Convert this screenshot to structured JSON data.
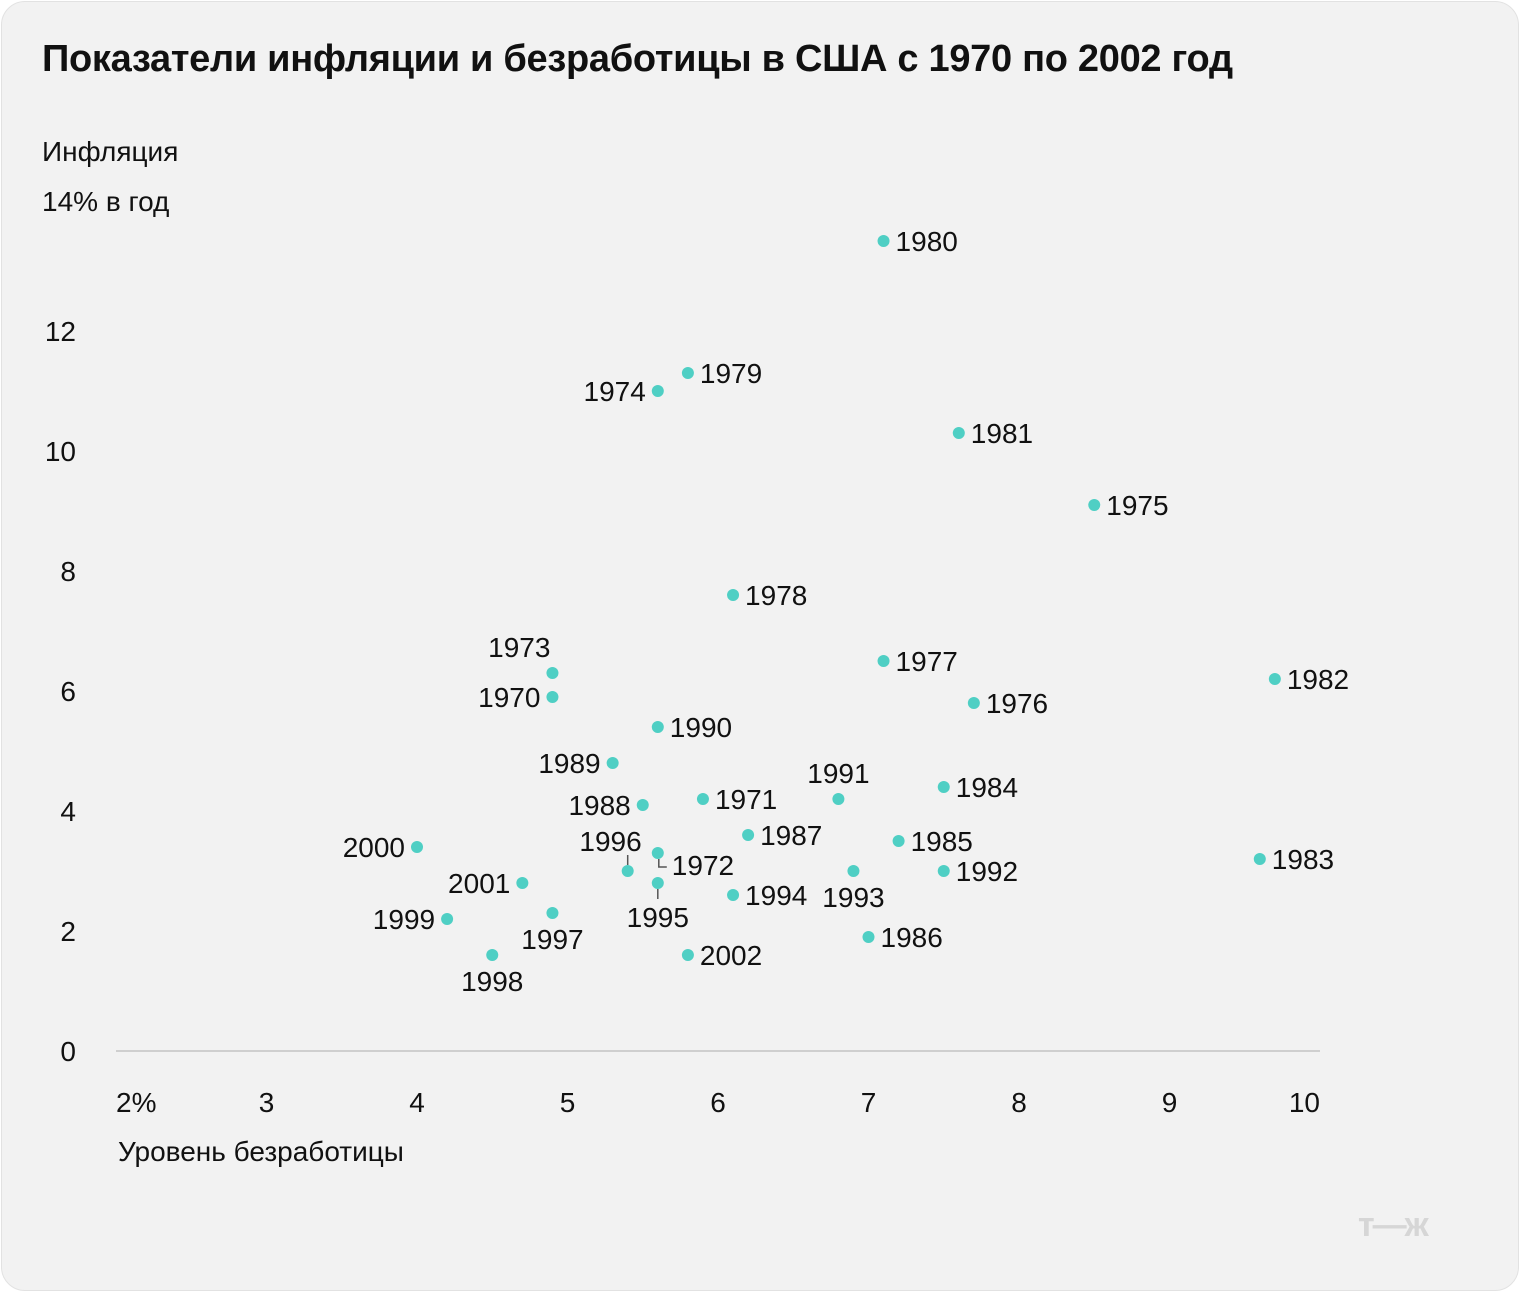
{
  "chart_data": {
    "type": "scatter",
    "title": "Показатели инфляции и безработицы в США с 1970 по 2002 год",
    "ylabel_line1": "Инфляция",
    "ylabel_line2": "14% в год",
    "xlabel": "Уровень безработицы",
    "xlim": [
      2,
      10
    ],
    "ylim": [
      0,
      14
    ],
    "x_ticks": [
      {
        "value": 2,
        "label": "2%"
      },
      {
        "value": 3,
        "label": "3"
      },
      {
        "value": 4,
        "label": "4"
      },
      {
        "value": 5,
        "label": "5"
      },
      {
        "value": 6,
        "label": "6"
      },
      {
        "value": 7,
        "label": "7"
      },
      {
        "value": 8,
        "label": "8"
      },
      {
        "value": 9,
        "label": "9"
      },
      {
        "value": 10,
        "label": "10"
      }
    ],
    "y_ticks": [
      {
        "value": 0,
        "label": "0"
      },
      {
        "value": 2,
        "label": "2"
      },
      {
        "value": 4,
        "label": "4"
      },
      {
        "value": 6,
        "label": "6"
      },
      {
        "value": 8,
        "label": "8"
      },
      {
        "value": 10,
        "label": "10"
      },
      {
        "value": 12,
        "label": "12"
      }
    ],
    "point_color": "#4fcfc4",
    "points": [
      {
        "year": "1970",
        "x": 4.9,
        "y": 5.9,
        "label_side": "left"
      },
      {
        "year": "1971",
        "x": 5.9,
        "y": 4.2,
        "label_side": "right"
      },
      {
        "year": "1972",
        "x": 5.6,
        "y": 3.3,
        "label_side": "right-low"
      },
      {
        "year": "1973",
        "x": 4.9,
        "y": 6.3,
        "label_side": "above-left"
      },
      {
        "year": "1974",
        "x": 5.6,
        "y": 11.0,
        "label_side": "left"
      },
      {
        "year": "1975",
        "x": 8.5,
        "y": 9.1,
        "label_side": "right"
      },
      {
        "year": "1976",
        "x": 7.7,
        "y": 5.8,
        "label_side": "right"
      },
      {
        "year": "1977",
        "x": 7.1,
        "y": 6.5,
        "label_side": "right"
      },
      {
        "year": "1978",
        "x": 6.1,
        "y": 7.6,
        "label_side": "right"
      },
      {
        "year": "1979",
        "x": 5.8,
        "y": 11.3,
        "label_side": "right"
      },
      {
        "year": "1980",
        "x": 7.1,
        "y": 13.5,
        "label_side": "right"
      },
      {
        "year": "1981",
        "x": 7.6,
        "y": 10.3,
        "label_side": "right"
      },
      {
        "year": "1982",
        "x": 9.7,
        "y": 6.2,
        "label_side": "right"
      },
      {
        "year": "1983",
        "x": 9.6,
        "y": 3.2,
        "label_side": "right"
      },
      {
        "year": "1984",
        "x": 7.5,
        "y": 4.4,
        "label_side": "right"
      },
      {
        "year": "1985",
        "x": 7.2,
        "y": 3.5,
        "label_side": "right"
      },
      {
        "year": "1986",
        "x": 7.0,
        "y": 1.9,
        "label_side": "right"
      },
      {
        "year": "1987",
        "x": 6.2,
        "y": 3.6,
        "label_side": "right"
      },
      {
        "year": "1988",
        "x": 5.5,
        "y": 4.1,
        "label_side": "left"
      },
      {
        "year": "1989",
        "x": 5.3,
        "y": 4.8,
        "label_side": "left"
      },
      {
        "year": "1990",
        "x": 5.6,
        "y": 5.4,
        "label_side": "right"
      },
      {
        "year": "1991",
        "x": 6.8,
        "y": 4.2,
        "label_side": "above"
      },
      {
        "year": "1992",
        "x": 7.5,
        "y": 3.0,
        "label_side": "right"
      },
      {
        "year": "1993",
        "x": 6.9,
        "y": 3.0,
        "label_side": "below"
      },
      {
        "year": "1994",
        "x": 6.1,
        "y": 2.6,
        "label_side": "right"
      },
      {
        "year": "1995",
        "x": 5.6,
        "y": 2.8,
        "label_side": "below-tick"
      },
      {
        "year": "1996",
        "x": 5.4,
        "y": 3.0,
        "label_side": "above-left-tick"
      },
      {
        "year": "1997",
        "x": 4.9,
        "y": 2.3,
        "label_side": "below"
      },
      {
        "year": "1998",
        "x": 4.5,
        "y": 1.6,
        "label_side": "below"
      },
      {
        "year": "1999",
        "x": 4.2,
        "y": 2.2,
        "label_side": "left"
      },
      {
        "year": "2000",
        "x": 4.0,
        "y": 3.4,
        "label_side": "left"
      },
      {
        "year": "2001",
        "x": 4.7,
        "y": 2.8,
        "label_side": "left"
      },
      {
        "year": "2002",
        "x": 5.8,
        "y": 1.6,
        "label_side": "right"
      }
    ]
  },
  "brand_logo": "т—ж"
}
